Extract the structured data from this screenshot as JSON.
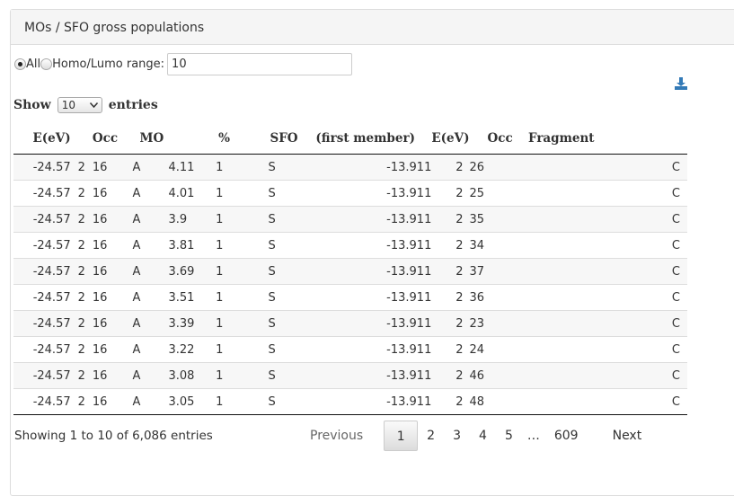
{
  "panel": {
    "title": "MOs / SFO gross populations"
  },
  "filter": {
    "all_label": "All",
    "range_label": "Homo/Lumo range:",
    "range_value": "10"
  },
  "length": {
    "show_label": "Show",
    "value": "10",
    "entries_label": "entries"
  },
  "icons": {
    "download": "download-icon",
    "select_arrow": "chevron-down-icon"
  },
  "colors": {
    "accent": "#337ab7"
  },
  "table": {
    "headers": [
      "E(eV)",
      "Occ",
      "MO",
      "%",
      "SFO",
      "(first member)",
      "E(eV)",
      "Occ",
      "Fragment"
    ],
    "rows": [
      [
        "-24.57",
        "2",
        "16",
        "A",
        "4.11",
        "1",
        "S",
        "-13.911",
        "2",
        "26",
        "C"
      ],
      [
        "-24.57",
        "2",
        "16",
        "A",
        "4.01",
        "1",
        "S",
        "-13.911",
        "2",
        "25",
        "C"
      ],
      [
        "-24.57",
        "2",
        "16",
        "A",
        "3.9",
        "1",
        "S",
        "-13.911",
        "2",
        "35",
        "C"
      ],
      [
        "-24.57",
        "2",
        "16",
        "A",
        "3.81",
        "1",
        "S",
        "-13.911",
        "2",
        "34",
        "C"
      ],
      [
        "-24.57",
        "2",
        "16",
        "A",
        "3.69",
        "1",
        "S",
        "-13.911",
        "2",
        "37",
        "C"
      ],
      [
        "-24.57",
        "2",
        "16",
        "A",
        "3.51",
        "1",
        "S",
        "-13.911",
        "2",
        "36",
        "C"
      ],
      [
        "-24.57",
        "2",
        "16",
        "A",
        "3.39",
        "1",
        "S",
        "-13.911",
        "2",
        "23",
        "C"
      ],
      [
        "-24.57",
        "2",
        "16",
        "A",
        "3.22",
        "1",
        "S",
        "-13.911",
        "2",
        "24",
        "C"
      ],
      [
        "-24.57",
        "2",
        "16",
        "A",
        "3.08",
        "1",
        "S",
        "-13.911",
        "2",
        "46",
        "C"
      ],
      [
        "-24.57",
        "2",
        "16",
        "A",
        "3.05",
        "1",
        "S",
        "-13.911",
        "2",
        "48",
        "C"
      ]
    ]
  },
  "info": "Showing 1 to 10 of 6,086 entries",
  "pagination": {
    "previous": "Previous",
    "pages": [
      "1",
      "2",
      "3",
      "4",
      "5"
    ],
    "ellipsis": "…",
    "last": "609",
    "next": "Next",
    "current": "1"
  }
}
